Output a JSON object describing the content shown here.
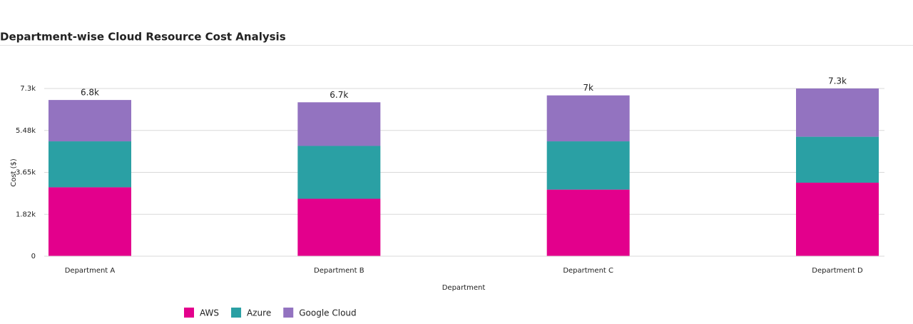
{
  "chart_data": {
    "type": "stacked-bar",
    "title": "Department-wise Cloud Resource Cost Analysis",
    "x_label": "Department",
    "y_label": "Cost ($)",
    "categories": [
      "Department A",
      "Department B",
      "Department C",
      "Department D"
    ],
    "series": [
      {
        "name": "AWS",
        "color": "#e3008c",
        "values": [
          3000,
          2500,
          2900,
          3200
        ]
      },
      {
        "name": "Azure",
        "color": "#2aa0a4",
        "values": [
          2000,
          2300,
          2100,
          2000
        ]
      },
      {
        "name": "Google Cloud",
        "color": "#9373c0",
        "values": [
          1800,
          1900,
          2000,
          2100
        ]
      }
    ],
    "totals": [
      6800,
      6700,
      7000,
      7300
    ],
    "total_labels": [
      "6.8k",
      "6.7k",
      "7k",
      "7.3k"
    ],
    "ylim": [
      0,
      7300
    ],
    "yticks": [
      0,
      {
        "value": 1825,
        "label": "1.82k"
      },
      {
        "value": 3650,
        "label": "3.65k"
      },
      {
        "value": 5475,
        "label": "5.48k"
      },
      {
        "value": 7300,
        "label": "7.3k"
      }
    ],
    "grid": true
  }
}
